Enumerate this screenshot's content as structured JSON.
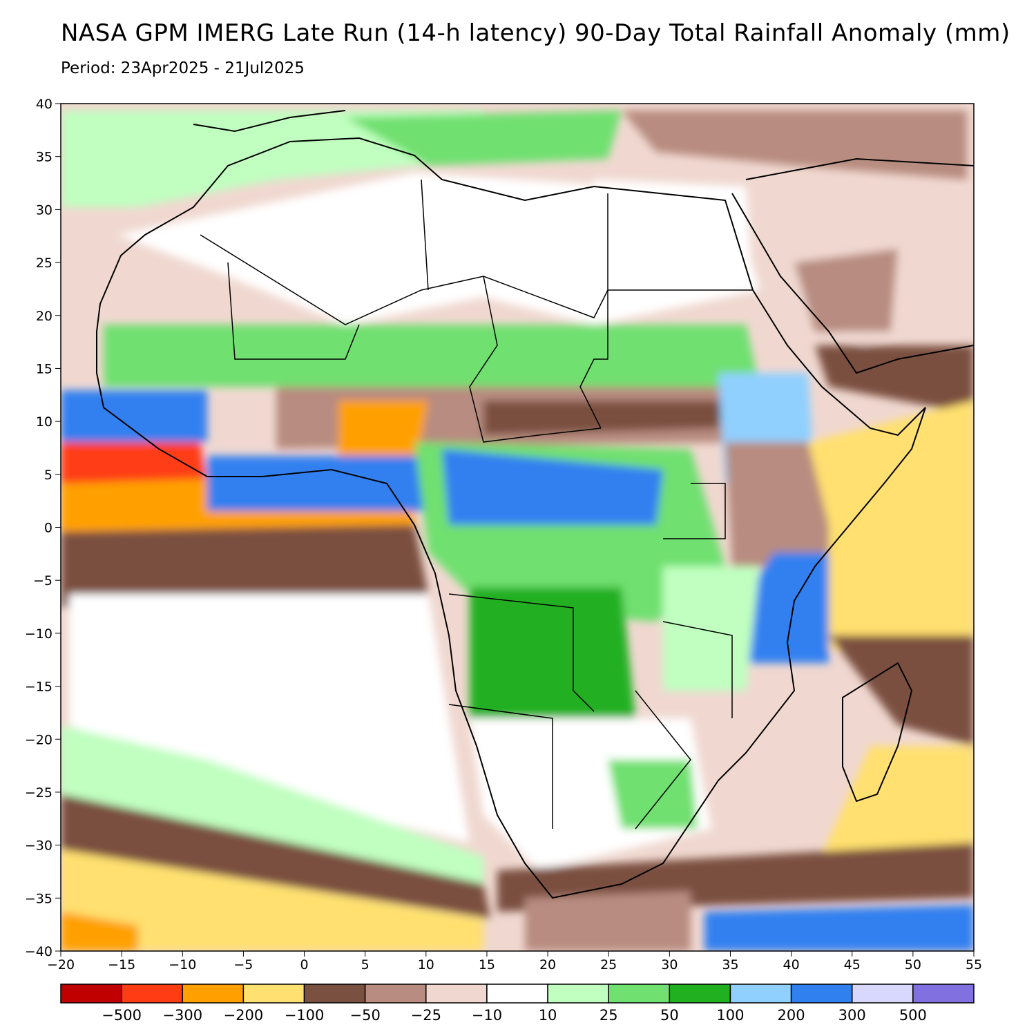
{
  "header": {
    "title": "NASA GPM IMERG Late Run (14-h latency) 90-Day Total Rainfall Anomaly (mm)",
    "period": "Period: 23Apr2025 - 21Jul2025"
  },
  "map": {
    "region": "Africa and surrounding oceans",
    "lon_range": [
      -20,
      55
    ],
    "lat_range": [
      -40,
      40
    ],
    "x_ticks": [
      "−20",
      "−15",
      "−10",
      "−5",
      "0",
      "5",
      "10",
      "15",
      "20",
      "25",
      "30",
      "35",
      "40",
      "45",
      "50",
      "55"
    ],
    "y_ticks": [
      "40",
      "35",
      "30",
      "25",
      "20",
      "15",
      "10",
      "5",
      "0",
      "−5",
      "−10",
      "−15",
      "−20",
      "−25",
      "−30",
      "−35",
      "−40"
    ]
  },
  "legend": {
    "colors": [
      "#c00000",
      "#ff3c14",
      "#ffa000",
      "#ffe070",
      "#7a5040",
      "#b88c80",
      "#f0d8d0",
      "#ffffff",
      "#c0ffc0",
      "#70e070",
      "#20b020",
      "#90d0ff",
      "#3080f0",
      "#d8d8ff",
      "#8070e0"
    ],
    "labels": [
      "−500",
      "−300",
      "−200",
      "−100",
      "−50",
      "−25",
      "−10",
      "10",
      "25",
      "50",
      "100",
      "200",
      "300",
      "500"
    ]
  }
}
